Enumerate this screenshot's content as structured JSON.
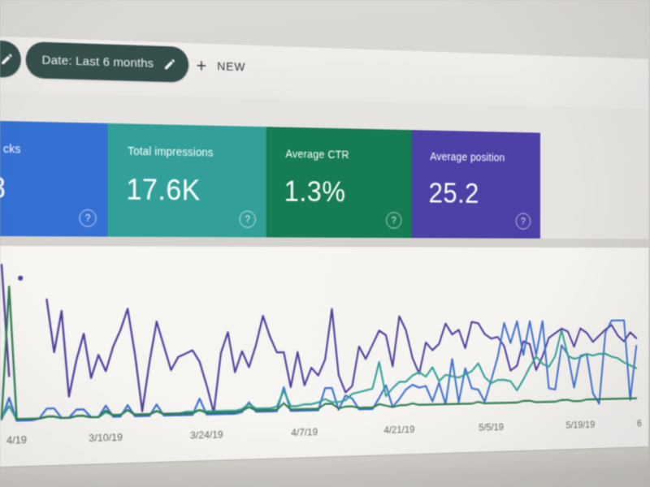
{
  "toolbar": {
    "date_filter_label": "Date: Last 6 months",
    "plus_glyph": "+",
    "new_label": "NEW"
  },
  "cards": [
    {
      "label": "cks",
      "value": "8",
      "color": "#3070dc",
      "help_glyph": "?",
      "note": "clipped at left edge of photo"
    },
    {
      "label": "Total impressions",
      "value": "17.6K",
      "color": "#2ba29a",
      "help_glyph": "?"
    },
    {
      "label": "Average CTR",
      "value": "1.3%",
      "color": "#0e7e52",
      "help_glyph": "?"
    },
    {
      "label": "Average position",
      "value": "25.2",
      "color": "#4c40ae",
      "help_glyph": "?"
    }
  ],
  "chart_data": {
    "type": "line",
    "title": "",
    "grid": false,
    "legend": false,
    "x_axis": {
      "unit": "daily points, day index 0 ≈ 2/24/19",
      "tick_labels": [
        {
          "label": "4/19",
          "day": 2,
          "partially_visible": true
        },
        {
          "label": "3/10/19",
          "day": 14
        },
        {
          "label": "3/24/19",
          "day": 28
        },
        {
          "label": "4/7/19",
          "day": 42
        },
        {
          "label": "4/21/19",
          "day": 56
        },
        {
          "label": "5/5/19",
          "day": 70
        },
        {
          "label": "5/19/19",
          "day": 84
        },
        {
          "label": "6",
          "day": 93.5,
          "partially_visible": true
        }
      ]
    },
    "y_axis": {
      "visible": false,
      "scale": "relative 0-100 (% of plot height, no axis labels shown)",
      "ylim": [
        0,
        100
      ]
    },
    "series": [
      {
        "name": "series-purple",
        "color": "#503ba6",
        "values": [
          95,
          28,
          null,
          null,
          null,
          null,
          74,
          42,
          67,
          15,
          37,
          53,
          26,
          40,
          30,
          45,
          55,
          68,
          40,
          5,
          35,
          60,
          45,
          30,
          38,
          40,
          42,
          35,
          20,
          3,
          40,
          53,
          28,
          41,
          31,
          45,
          63,
          50,
          40,
          40,
          18,
          40,
          19,
          30,
          25,
          35,
          67,
          25,
          14,
          18,
          43,
          35,
          44,
          53,
          50,
          30,
          62,
          53,
          35,
          25,
          45,
          40,
          44,
          57,
          50,
          53,
          41,
          58,
          57,
          50,
          47,
          48,
          42,
          26,
          29,
          45,
          43,
          26,
          35,
          47,
          50,
          53,
          51,
          41,
          53,
          50,
          44,
          48,
          52,
          55,
          48,
          44,
          50,
          46
        ]
      },
      {
        "name": "series-blue",
        "color": "#3a6fd8",
        "values": [
          2,
          15,
          1,
          1,
          1,
          2,
          8,
          8,
          2,
          2,
          7,
          7,
          2,
          2,
          9,
          2,
          2,
          9,
          2,
          2,
          2,
          9,
          2,
          2,
          2,
          2,
          2,
          12,
          2,
          2,
          2,
          2,
          2,
          3,
          9,
          3,
          3,
          3,
          3,
          18,
          3,
          3,
          3,
          3,
          3,
          17,
          17,
          3,
          12,
          10,
          3,
          3,
          3,
          10,
          18,
          4,
          9,
          15,
          18,
          16,
          17,
          7,
          19,
          5,
          34,
          6,
          28,
          15,
          14,
          6,
          20,
          35,
          57,
          44,
          58,
          36,
          58,
          36,
          58,
          14,
          13,
          42,
          36,
          14,
          35,
          36,
          10,
          3,
          50,
          58,
          58,
          58,
          5,
          41
        ]
      },
      {
        "name": "series-teal",
        "color": "#2aa396",
        "values": [
          3,
          10,
          2,
          2,
          2,
          2,
          3,
          3,
          2,
          2,
          3,
          3,
          2,
          2,
          5,
          3,
          3,
          6,
          3,
          3,
          3,
          5,
          3,
          3,
          3,
          4,
          4,
          5,
          4,
          4,
          4,
          4,
          4,
          5,
          8,
          5,
          5,
          5,
          6,
          16,
          6,
          6,
          7,
          7,
          8,
          10,
          8,
          8,
          9,
          13,
          14,
          15,
          16,
          33,
          11,
          16,
          20,
          20,
          24,
          26,
          23,
          29,
          20,
          24,
          23,
          22,
          24,
          26,
          31,
          22,
          18,
          20,
          20,
          19,
          13,
          20,
          28,
          35,
          30,
          28,
          35,
          52,
          35,
          33,
          34,
          36,
          35,
          36,
          36,
          34,
          33,
          30,
          28,
          26
        ]
      },
      {
        "name": "series-green",
        "color": "#2a7d4f",
        "values": [
          3,
          82,
          2,
          2,
          2,
          2,
          3,
          3,
          2,
          2,
          3,
          3,
          2,
          2,
          6,
          3,
          3,
          6,
          3,
          3,
          3,
          5,
          3,
          3,
          3,
          3,
          3,
          5,
          3,
          3,
          3,
          3,
          3,
          4,
          6,
          4,
          4,
          4,
          4,
          8,
          4,
          4,
          4,
          4,
          4,
          7,
          7,
          4,
          5,
          5,
          4,
          4,
          4,
          6,
          5,
          4,
          5,
          5,
          6,
          5,
          5,
          5,
          5,
          5,
          5,
          5,
          5,
          5,
          6,
          5,
          5,
          5,
          5,
          5,
          5,
          6,
          6,
          5,
          5,
          5,
          5,
          6,
          6,
          5,
          5,
          6,
          6,
          6,
          6,
          6,
          6,
          6,
          6,
          6
        ]
      }
    ],
    "isolated_points": [
      {
        "series": "series-purple",
        "day": 2.5,
        "value": 87
      }
    ]
  }
}
